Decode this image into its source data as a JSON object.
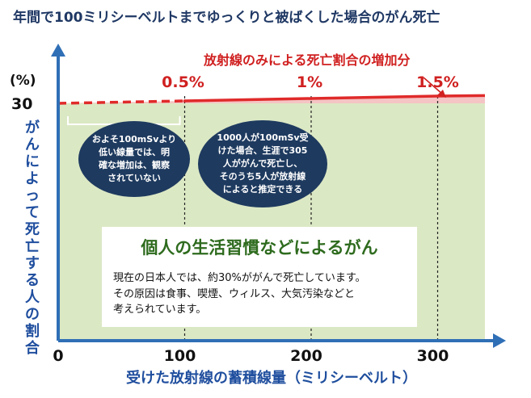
{
  "chart_data": {
    "type": "line",
    "title": "年間で100ミリシーベルトまでゆっくりと被ばくした場合のがん死亡",
    "xlabel": "受けた放射線の蓄積線量（ミリシーベルト）",
    "ylabel": "がんによって死亡する人の割合",
    "y_unit": "(%)",
    "xlim": [
      0,
      320
    ],
    "x_ticks": [
      "0",
      "100",
      "200",
      "300"
    ],
    "x_tick_values": [
      0,
      100,
      200,
      300
    ],
    "y_ticks": [
      "30"
    ],
    "y_tick_values": [
      30
    ],
    "grid_x": [
      100,
      200,
      300
    ],
    "series": [
      {
        "name": "放射線のみによる死亡割合の増加分",
        "color": "#e02a2a",
        "points": [
          {
            "x": 0,
            "y": 30,
            "style": "dashed"
          },
          {
            "x": 100,
            "y": 30.5,
            "style": "dashed"
          },
          {
            "x": 100,
            "y": 30.5,
            "style": "solid"
          },
          {
            "x": 200,
            "y": 31,
            "style": "solid"
          },
          {
            "x": 300,
            "y": 31.5,
            "style": "solid"
          }
        ]
      }
    ],
    "increase_labels": [
      {
        "x": 100,
        "text": "0.5%"
      },
      {
        "x": 200,
        "text": "1%"
      },
      {
        "x": 300,
        "text": "1.5%"
      }
    ],
    "legend_text": "放射線のみによる死亡割合の増加分",
    "baseline_fill": "#dbe8c4",
    "increase_fill": "#f5c4c4"
  },
  "bubbles": [
    {
      "text": "およそ100mSvより\n低い線量では、明\n確な増加は、観察\nされていない"
    },
    {
      "text": "1000人が100mSv受\nけた場合、生涯で305\n人ががんで死亡し、\nそのうち5人が放射線\nによると推定できる"
    }
  ],
  "info_box": {
    "heading": "個人の生活習慣などによるがん",
    "body": "現在の日本人では、約30%ががんで死亡しています。\nその原因は食事、喫煙、ウィルス、大気汚染などと\n考えられています。"
  }
}
